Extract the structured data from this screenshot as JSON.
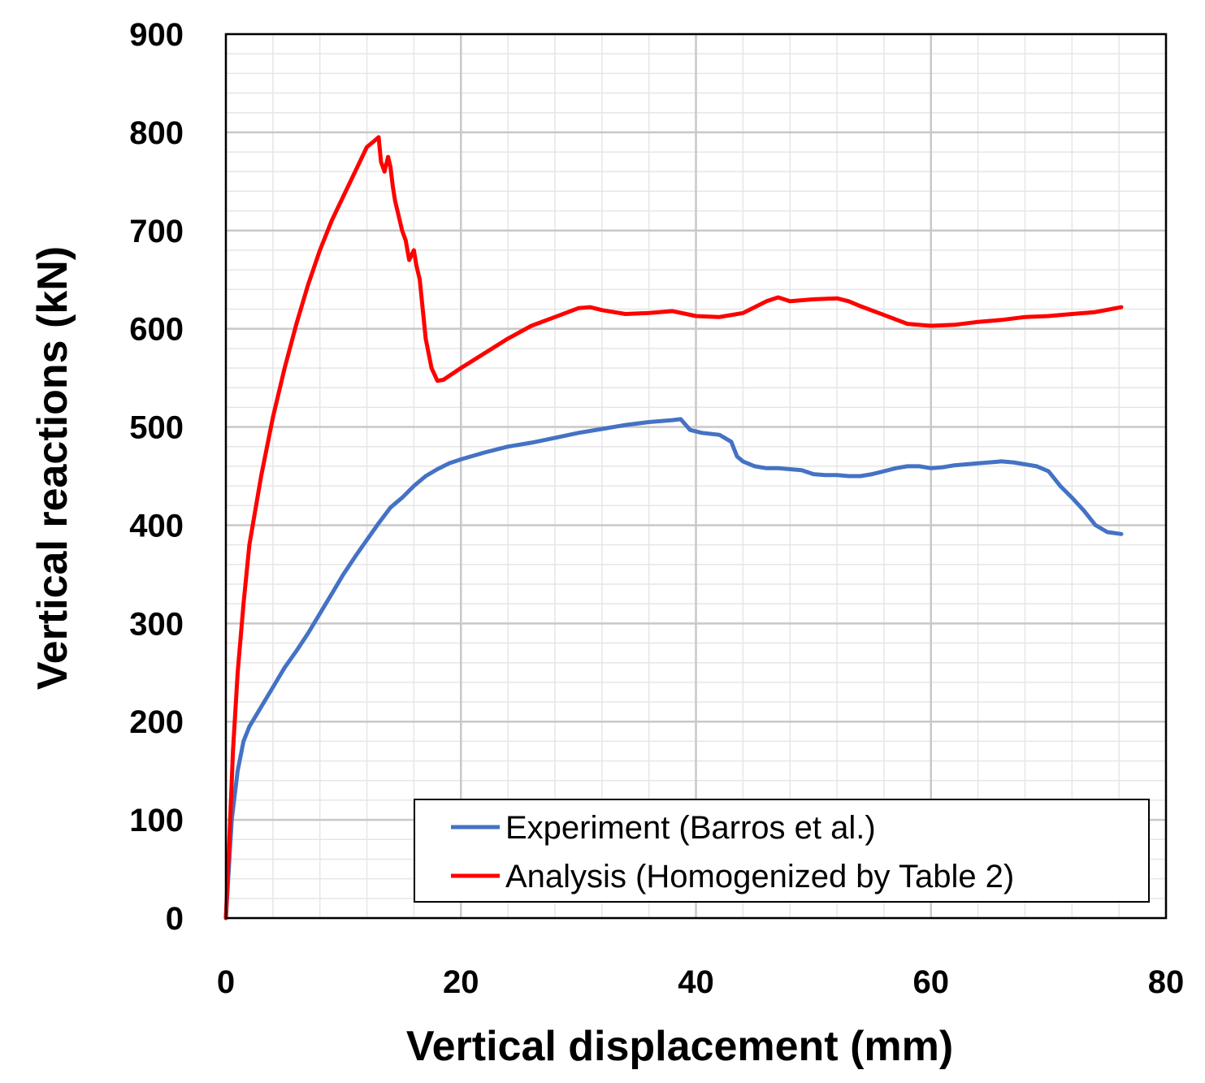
{
  "chart_data": {
    "type": "line",
    "title": "",
    "xlabel": "Vertical displacement (mm)",
    "ylabel": "Vertical reactions (kN)",
    "xlim": [
      0,
      80
    ],
    "ylim": [
      0,
      900
    ],
    "xticks": [
      "0",
      "20",
      "40",
      "60",
      "80"
    ],
    "yticks": [
      "0",
      "100",
      "200",
      "300",
      "400",
      "500",
      "600",
      "700",
      "800",
      "900"
    ],
    "grid": true,
    "legend_position": "bottom-right",
    "series": [
      {
        "name": "Experiment (Barros et al.)",
        "color": "#4472C4",
        "x": [
          0,
          0.5,
          1,
          1.5,
          2,
          3,
          4,
          5,
          6,
          7,
          8,
          9,
          10,
          11,
          12,
          13,
          14,
          15,
          16,
          17,
          18,
          19,
          20,
          22,
          24,
          26,
          28,
          30,
          32,
          34,
          36,
          38,
          38.7,
          39.5,
          40.5,
          42,
          43,
          43.5,
          44,
          45,
          46,
          47,
          48,
          49,
          50,
          51,
          52,
          53,
          54,
          55,
          56,
          57,
          58,
          59,
          60,
          61,
          62,
          63,
          64,
          65,
          66,
          67,
          68,
          69,
          70,
          71,
          72,
          73,
          74,
          75,
          76.2
        ],
        "y": [
          0,
          100,
          150,
          180,
          195,
          215,
          235,
          255,
          272,
          290,
          310,
          330,
          350,
          368,
          385,
          402,
          418,
          428,
          440,
          450,
          457,
          463,
          467,
          474,
          480,
          484,
          489,
          494,
          498,
          502,
          505,
          507,
          508,
          497,
          494,
          492,
          485,
          470,
          465,
          460,
          458,
          458,
          457,
          456,
          452,
          451,
          451,
          450,
          450,
          452,
          455,
          458,
          460,
          460,
          458,
          459,
          461,
          462,
          463,
          464,
          465,
          464,
          462,
          460,
          455,
          440,
          428,
          415,
          400,
          393,
          391
        ]
      },
      {
        "name": "Analysis (Homogenized by Table 2)",
        "color": "#FF0000",
        "x": [
          0,
          0.3,
          0.6,
          1,
          1.5,
          2,
          3,
          4,
          5,
          6,
          7,
          8,
          9,
          10,
          11,
          12,
          12.5,
          13,
          13.2,
          13.5,
          13.8,
          14,
          14.2,
          14.4,
          14.6,
          15,
          15.3,
          15.6,
          15.8,
          16,
          16.2,
          16.5,
          17,
          17.5,
          18,
          18.5,
          19,
          20,
          22,
          24,
          26,
          28,
          30,
          31,
          32,
          34,
          36,
          38,
          40,
          42,
          44,
          46,
          47,
          48,
          50,
          52,
          53,
          54,
          56,
          58,
          60,
          62,
          64,
          66,
          68,
          70,
          72,
          74,
          76.2
        ],
        "y": [
          0,
          80,
          170,
          250,
          320,
          380,
          450,
          510,
          560,
          605,
          645,
          680,
          710,
          735,
          760,
          785,
          790,
          795,
          770,
          760,
          775,
          765,
          745,
          730,
          720,
          700,
          690,
          670,
          675,
          680,
          665,
          650,
          590,
          560,
          547,
          548,
          552,
          560,
          575,
          590,
          603,
          612,
          621,
          622,
          619,
          615,
          616,
          618,
          613,
          612,
          616,
          628,
          632,
          628,
          630,
          631,
          628,
          623,
          614,
          605,
          603,
          604,
          607,
          609,
          612,
          613,
          615,
          617,
          622
        ]
      }
    ]
  }
}
